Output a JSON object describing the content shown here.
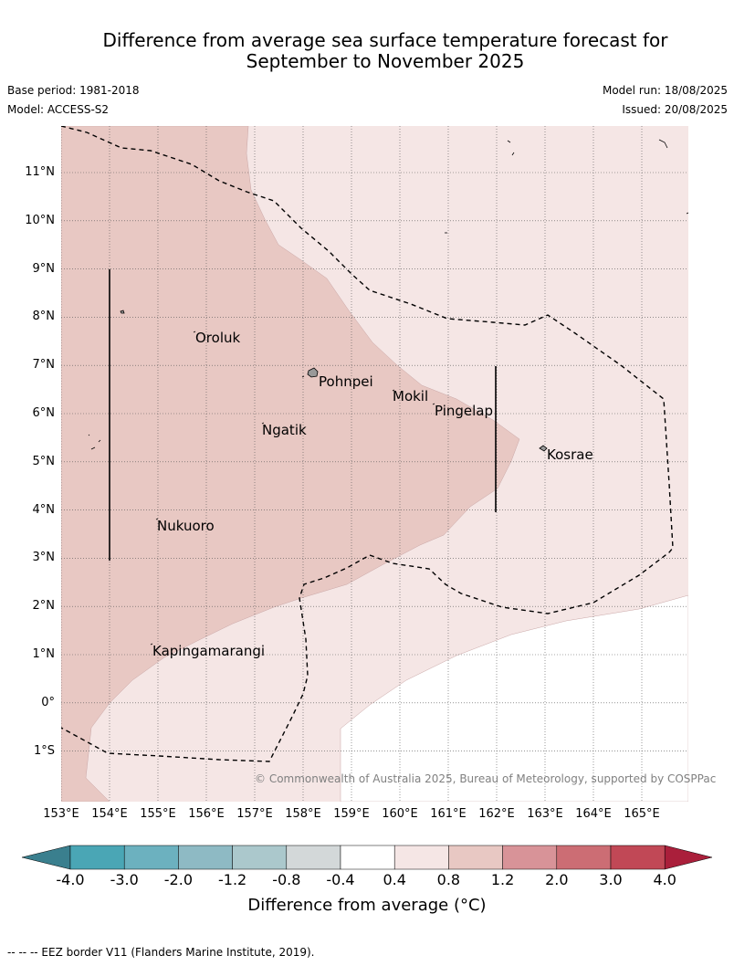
{
  "title_line1": "Difference from average sea surface temperature forecast for",
  "title_line2": "September to November 2025",
  "meta": {
    "base_period": "Base period: 1981-2018",
    "model": "Model: ACCESS-S2",
    "model_run": "Model run: 18/08/2025",
    "issued": "Issued: 20/08/2025"
  },
  "lat_labels": [
    "11°N",
    "10°N",
    "9°N",
    "8°N",
    "7°N",
    "6°N",
    "5°N",
    "4°N",
    "3°N",
    "2°N",
    "1°N",
    "0°",
    "1°S"
  ],
  "lon_labels": [
    "153°E",
    "154°E",
    "155°E",
    "156°E",
    "157°E",
    "158°E",
    "159°E",
    "160°E",
    "161°E",
    "162°E",
    "163°E",
    "164°E",
    "165°E"
  ],
  "places": {
    "oroluk": "Oroluk",
    "pohnpei": "Pohnpei",
    "mokil": "Mokil",
    "pingelap": "Pingelap",
    "ngatik": "Ngatik",
    "kosrae": "Kosrae",
    "nukuoro": "Nukuoro",
    "kapingamarangi": "Kapingamarangi"
  },
  "copyright": "© Commonwealth of Australia 2025, Bureau of Meteorology, supported by COSPPac",
  "colorbar": {
    "ticks": [
      "-4.0",
      "-3.0",
      "-2.0",
      "-1.2",
      "-0.8",
      "-0.4",
      "0.4",
      "0.8",
      "1.2",
      "2.0",
      "3.0",
      "4.0"
    ],
    "colors": [
      "#3a7f8e",
      "#4aa6b5",
      "#6cb1bf",
      "#8ebac4",
      "#abc8cc",
      "#d3d8d9",
      "#ffffff",
      "#f5e6e5",
      "#e8c8c3",
      "#d89398",
      "#cc6d74",
      "#c14856",
      "#aa1f3b"
    ],
    "label": "Difference from average (°C)"
  },
  "footer": "--  --  -- EEZ border V11 (Flanders Marine Institute, 2019)."
}
